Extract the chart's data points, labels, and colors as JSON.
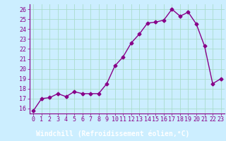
{
  "x": [
    0,
    1,
    2,
    3,
    4,
    5,
    6,
    7,
    8,
    9,
    10,
    11,
    12,
    13,
    14,
    15,
    16,
    17,
    18,
    19,
    20,
    21,
    22,
    23
  ],
  "y": [
    15.8,
    17.0,
    17.1,
    17.5,
    17.2,
    17.7,
    17.5,
    17.5,
    17.5,
    18.5,
    20.3,
    21.2,
    22.6,
    23.5,
    24.6,
    24.7,
    24.9,
    26.0,
    25.3,
    25.7,
    24.5,
    22.3,
    18.5,
    19.0
  ],
  "line_color": "#880088",
  "marker": "D",
  "markersize": 2.5,
  "linewidth": 1.0,
  "bg_color": "#cceeff",
  "grid_color": "#aaddcc",
  "xlabel": "Windchill (Refroidissement éolien,°C)",
  "xlabel_bg": "#7700aa",
  "xlabel_color": "#ffffff",
  "ylabel_ticks": [
    16,
    17,
    18,
    19,
    20,
    21,
    22,
    23,
    24,
    25,
    26
  ],
  "xlim": [
    -0.5,
    23.5
  ],
  "ylim": [
    15.5,
    26.5
  ],
  "xtick_labels": [
    "0",
    "1",
    "2",
    "3",
    "4",
    "5",
    "6",
    "7",
    "8",
    "9",
    "10",
    "11",
    "12",
    "13",
    "14",
    "15",
    "16",
    "17",
    "18",
    "19",
    "20",
    "21",
    "22",
    "23"
  ],
  "tick_fontsize": 6.0,
  "xlabel_fontsize": 7.0,
  "spine_color": "#880088"
}
